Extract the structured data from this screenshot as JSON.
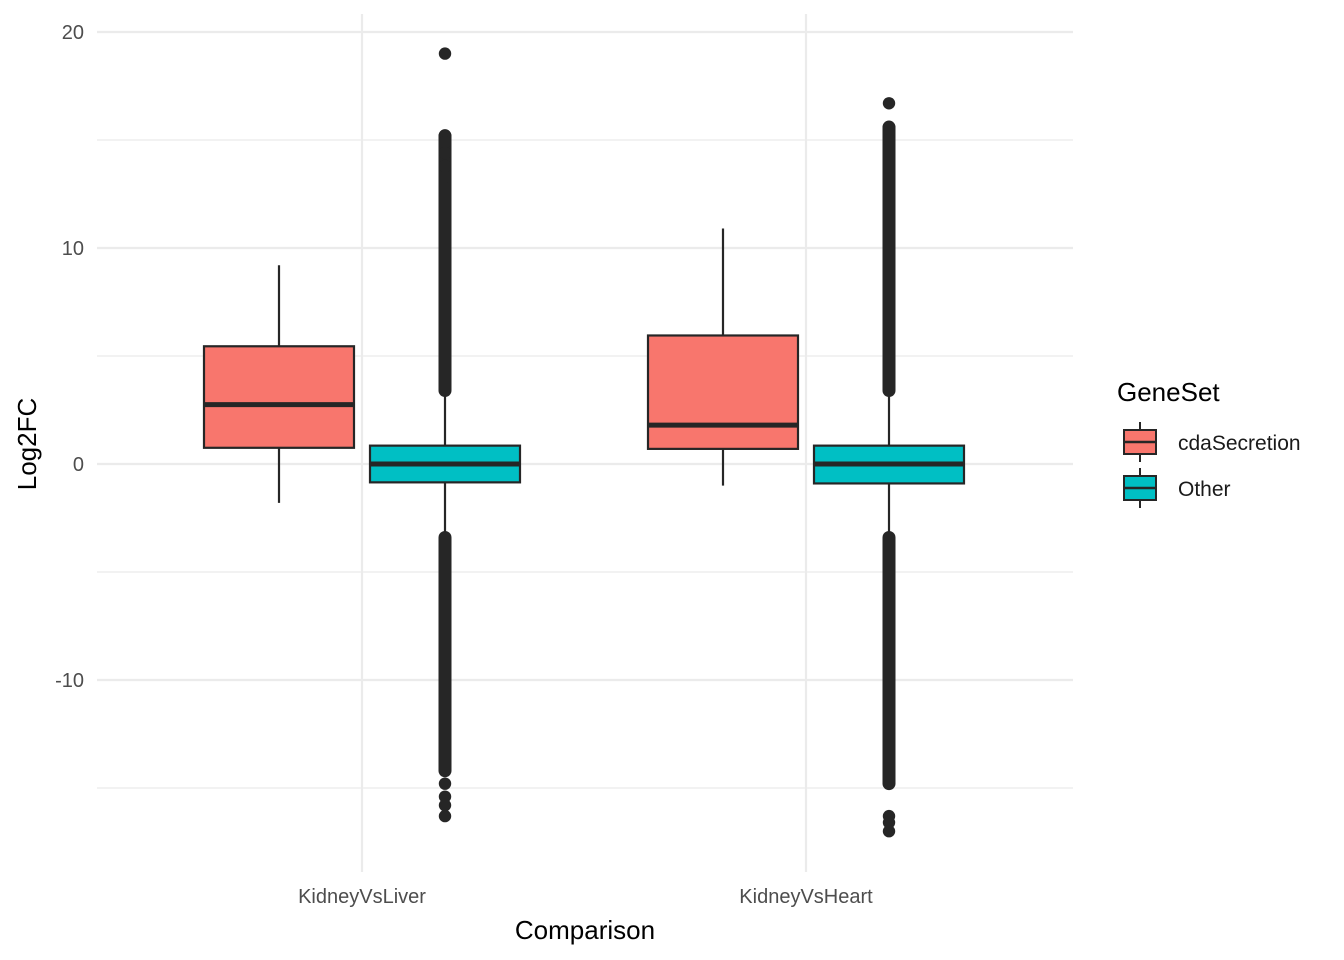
{
  "chart_data": {
    "type": "boxplot",
    "xlabel": "Comparison",
    "ylabel": "Log2FC",
    "categories": [
      "KidneyVsLiver",
      "KidneyVsHeart"
    ],
    "ylim": [
      -19,
      21
    ],
    "yticks": [
      -10,
      0,
      10,
      20
    ],
    "y_minor_ticks": [
      -15,
      -5,
      5,
      15
    ],
    "grid": true,
    "legend": {
      "title": "GeneSet",
      "position": "right",
      "entries": [
        "cdaSecretion",
        "Other"
      ]
    },
    "series": [
      {
        "name": "cdaSecretion",
        "color": "#F8766D",
        "boxes": [
          {
            "category": "KidneyVsLiver",
            "whisker_low": -1.8,
            "q1": 0.75,
            "median": 2.75,
            "q3": 5.45,
            "whisker_high": 9.2,
            "outliers": []
          },
          {
            "category": "KidneyVsHeart",
            "whisker_low": -1.0,
            "q1": 0.7,
            "median": 1.8,
            "q3": 5.95,
            "whisker_high": 10.9,
            "outliers": []
          }
        ]
      },
      {
        "name": "Other",
        "color": "#00BFC4",
        "boxes": [
          {
            "category": "KidneyVsLiver",
            "whisker_low": -3.4,
            "q1": -0.85,
            "median": 0.0,
            "q3": 0.85,
            "whisker_high": 3.4,
            "outlier_bands": [
              [
                3.4,
                15.2
              ],
              [
                -14.2,
                -3.4
              ]
            ],
            "outliers": [
              19.0,
              15.2,
              14.9,
              14.4,
              13.8,
              13.3,
              -14.8,
              -15.4,
              -15.8,
              -16.3
            ]
          },
          {
            "category": "KidneyVsHeart",
            "whisker_low": -3.4,
            "q1": -0.9,
            "median": 0.0,
            "q3": 0.85,
            "whisker_high": 3.4,
            "outlier_bands": [
              [
                3.4,
                15.6
              ],
              [
                -14.8,
                -3.4
              ]
            ],
            "outliers": [
              16.7,
              15.6,
              15.3,
              15.0,
              -16.3,
              -16.6,
              -17.0
            ]
          }
        ]
      }
    ]
  }
}
